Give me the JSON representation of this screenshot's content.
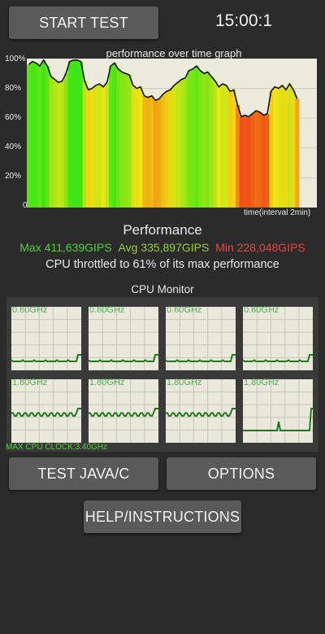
{
  "header": {
    "start_label": "START TEST",
    "timer": "15:00:1"
  },
  "graph": {
    "title": "performance over time graph",
    "y_ticks": [
      "100%",
      "80%",
      "60%",
      "40%",
      "20%",
      "0"
    ],
    "x_label": "time(interval 2min)"
  },
  "performance": {
    "title": "Performance",
    "max": "Max 411,639GIPS",
    "avg": "Avg 335,897GIPS",
    "min": "Min 228,048GIPS",
    "throttle_text": "CPU throttled to 61% of its max performance",
    "colors": {
      "max": "#4cd137",
      "avg": "#9acd32",
      "min": "#e84545"
    }
  },
  "cpu_monitor": {
    "title": "CPU Monitor",
    "cores": [
      {
        "freq": "0.60GHz"
      },
      {
        "freq": "0.60GHz"
      },
      {
        "freq": "0.60GHz"
      },
      {
        "freq": "0.60GHz"
      },
      {
        "freq": "1.80GHz"
      },
      {
        "freq": "1.80GHz"
      },
      {
        "freq": "1.80GHz"
      },
      {
        "freq": "1.80GHz"
      }
    ],
    "max_clock": "MAX CPU CLOCK:3.40GHz"
  },
  "buttons": {
    "test_java": "TEST JAVA/C",
    "options": "OPTIONS",
    "help": "HELP/INSTRUCTIONS"
  },
  "chart_data": {
    "type": "area",
    "title": "performance over time graph",
    "xlabel": "time(interval 2min)",
    "ylabel": "",
    "ylim": [
      0,
      100
    ],
    "y_ticks": [
      "0",
      "20%",
      "40%",
      "60%",
      "80%",
      "100%"
    ],
    "series": [
      {
        "values": [
          96,
          98,
          97,
          95,
          99,
          95,
          88,
          86,
          84,
          85,
          90,
          98,
          99,
          99,
          98,
          85,
          79,
          80,
          82,
          83,
          81,
          84,
          95,
          97,
          93,
          91,
          90,
          89,
          82,
          80,
          81,
          75,
          74,
          75,
          72,
          73,
          76,
          78,
          79,
          82,
          84,
          86,
          87,
          92,
          93,
          95,
          92,
          90,
          91,
          88,
          85,
          81,
          83,
          82,
          78,
          79,
          69,
          61,
          62,
          61,
          63,
          65,
          64,
          62,
          63,
          78,
          81,
          80,
          82,
          79,
          83,
          79,
          73
        ]
      }
    ]
  }
}
